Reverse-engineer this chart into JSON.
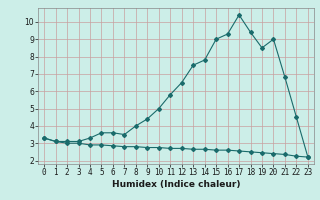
{
  "title": "",
  "xlabel": "Humidex (Indice chaleur)",
  "ylabel": "",
  "bg_color": "#cceee8",
  "line_color": "#1a6b6b",
  "grid_color_major": "#c8a0a0",
  "xlim": [
    -0.5,
    23.5
  ],
  "ylim": [
    1.8,
    10.8
  ],
  "yticks": [
    2,
    3,
    4,
    5,
    6,
    7,
    8,
    9,
    10
  ],
  "xticks": [
    0,
    1,
    2,
    3,
    4,
    5,
    6,
    7,
    8,
    9,
    10,
    11,
    12,
    13,
    14,
    15,
    16,
    17,
    18,
    19,
    20,
    21,
    22,
    23
  ],
  "upper_x": [
    0,
    1,
    2,
    3,
    4,
    5,
    6,
    7,
    8,
    9,
    10,
    11,
    12,
    13,
    14,
    15,
    16,
    17,
    18,
    19,
    20,
    21,
    22,
    23
  ],
  "upper_y": [
    3.3,
    3.1,
    3.1,
    3.1,
    3.3,
    3.6,
    3.6,
    3.5,
    4.0,
    4.4,
    5.0,
    5.8,
    6.5,
    7.5,
    7.8,
    9.0,
    9.3,
    10.4,
    9.4,
    8.5,
    9.0,
    6.8,
    4.5,
    2.2
  ],
  "lower_x": [
    0,
    1,
    2,
    3,
    4,
    5,
    6,
    7,
    8,
    9,
    10,
    11,
    12,
    13,
    14,
    15,
    16,
    17,
    18,
    19,
    20,
    21,
    22,
    23
  ],
  "lower_y": [
    3.3,
    3.1,
    3.0,
    3.0,
    2.9,
    2.9,
    2.85,
    2.8,
    2.8,
    2.75,
    2.75,
    2.7,
    2.7,
    2.65,
    2.65,
    2.6,
    2.6,
    2.55,
    2.5,
    2.45,
    2.4,
    2.35,
    2.25,
    2.2
  ],
  "marker": "D",
  "marker_size": 2.0,
  "line_width": 0.8,
  "tick_fontsize": 5.5,
  "label_fontsize": 6.5
}
